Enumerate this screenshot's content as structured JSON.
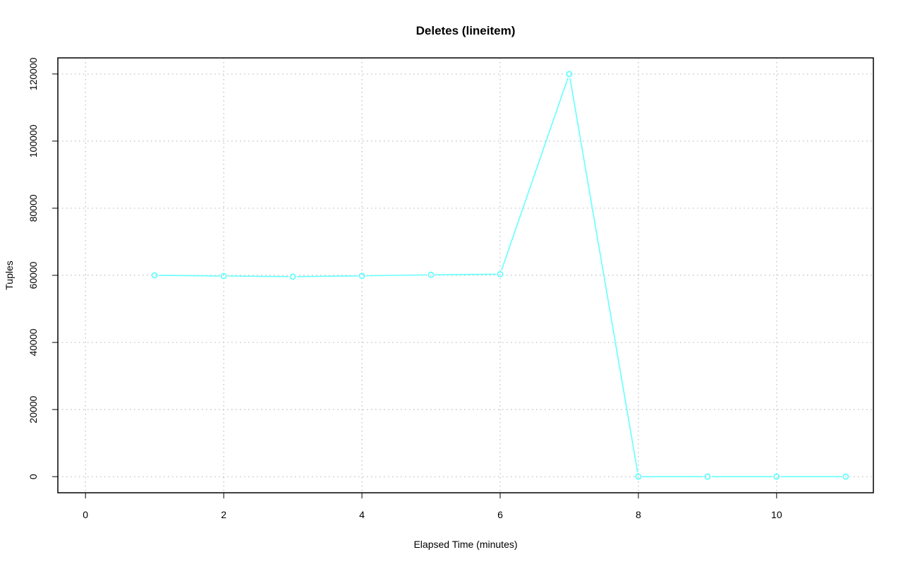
{
  "chart_data": {
    "type": "line",
    "title": "Deletes (lineitem)",
    "xlabel": "Elapsed Time (minutes)",
    "ylabel": "Tuples",
    "xlim": [
      -0.4,
      11.4
    ],
    "ylim": [
      -4800,
      124800
    ],
    "x_ticks": [
      0,
      2,
      4,
      6,
      8,
      10
    ],
    "y_ticks": [
      0,
      20000,
      40000,
      60000,
      80000,
      100000,
      120000
    ],
    "grid": true,
    "series": [
      {
        "color": "#66ffff",
        "marker": "open-circle",
        "x": [
          1,
          2,
          3,
          4,
          5,
          6,
          7,
          8,
          9,
          10,
          11
        ],
        "y": [
          60000,
          59800,
          59600,
          59850,
          60150,
          60350,
          120000,
          0,
          0,
          0,
          0
        ]
      }
    ]
  }
}
